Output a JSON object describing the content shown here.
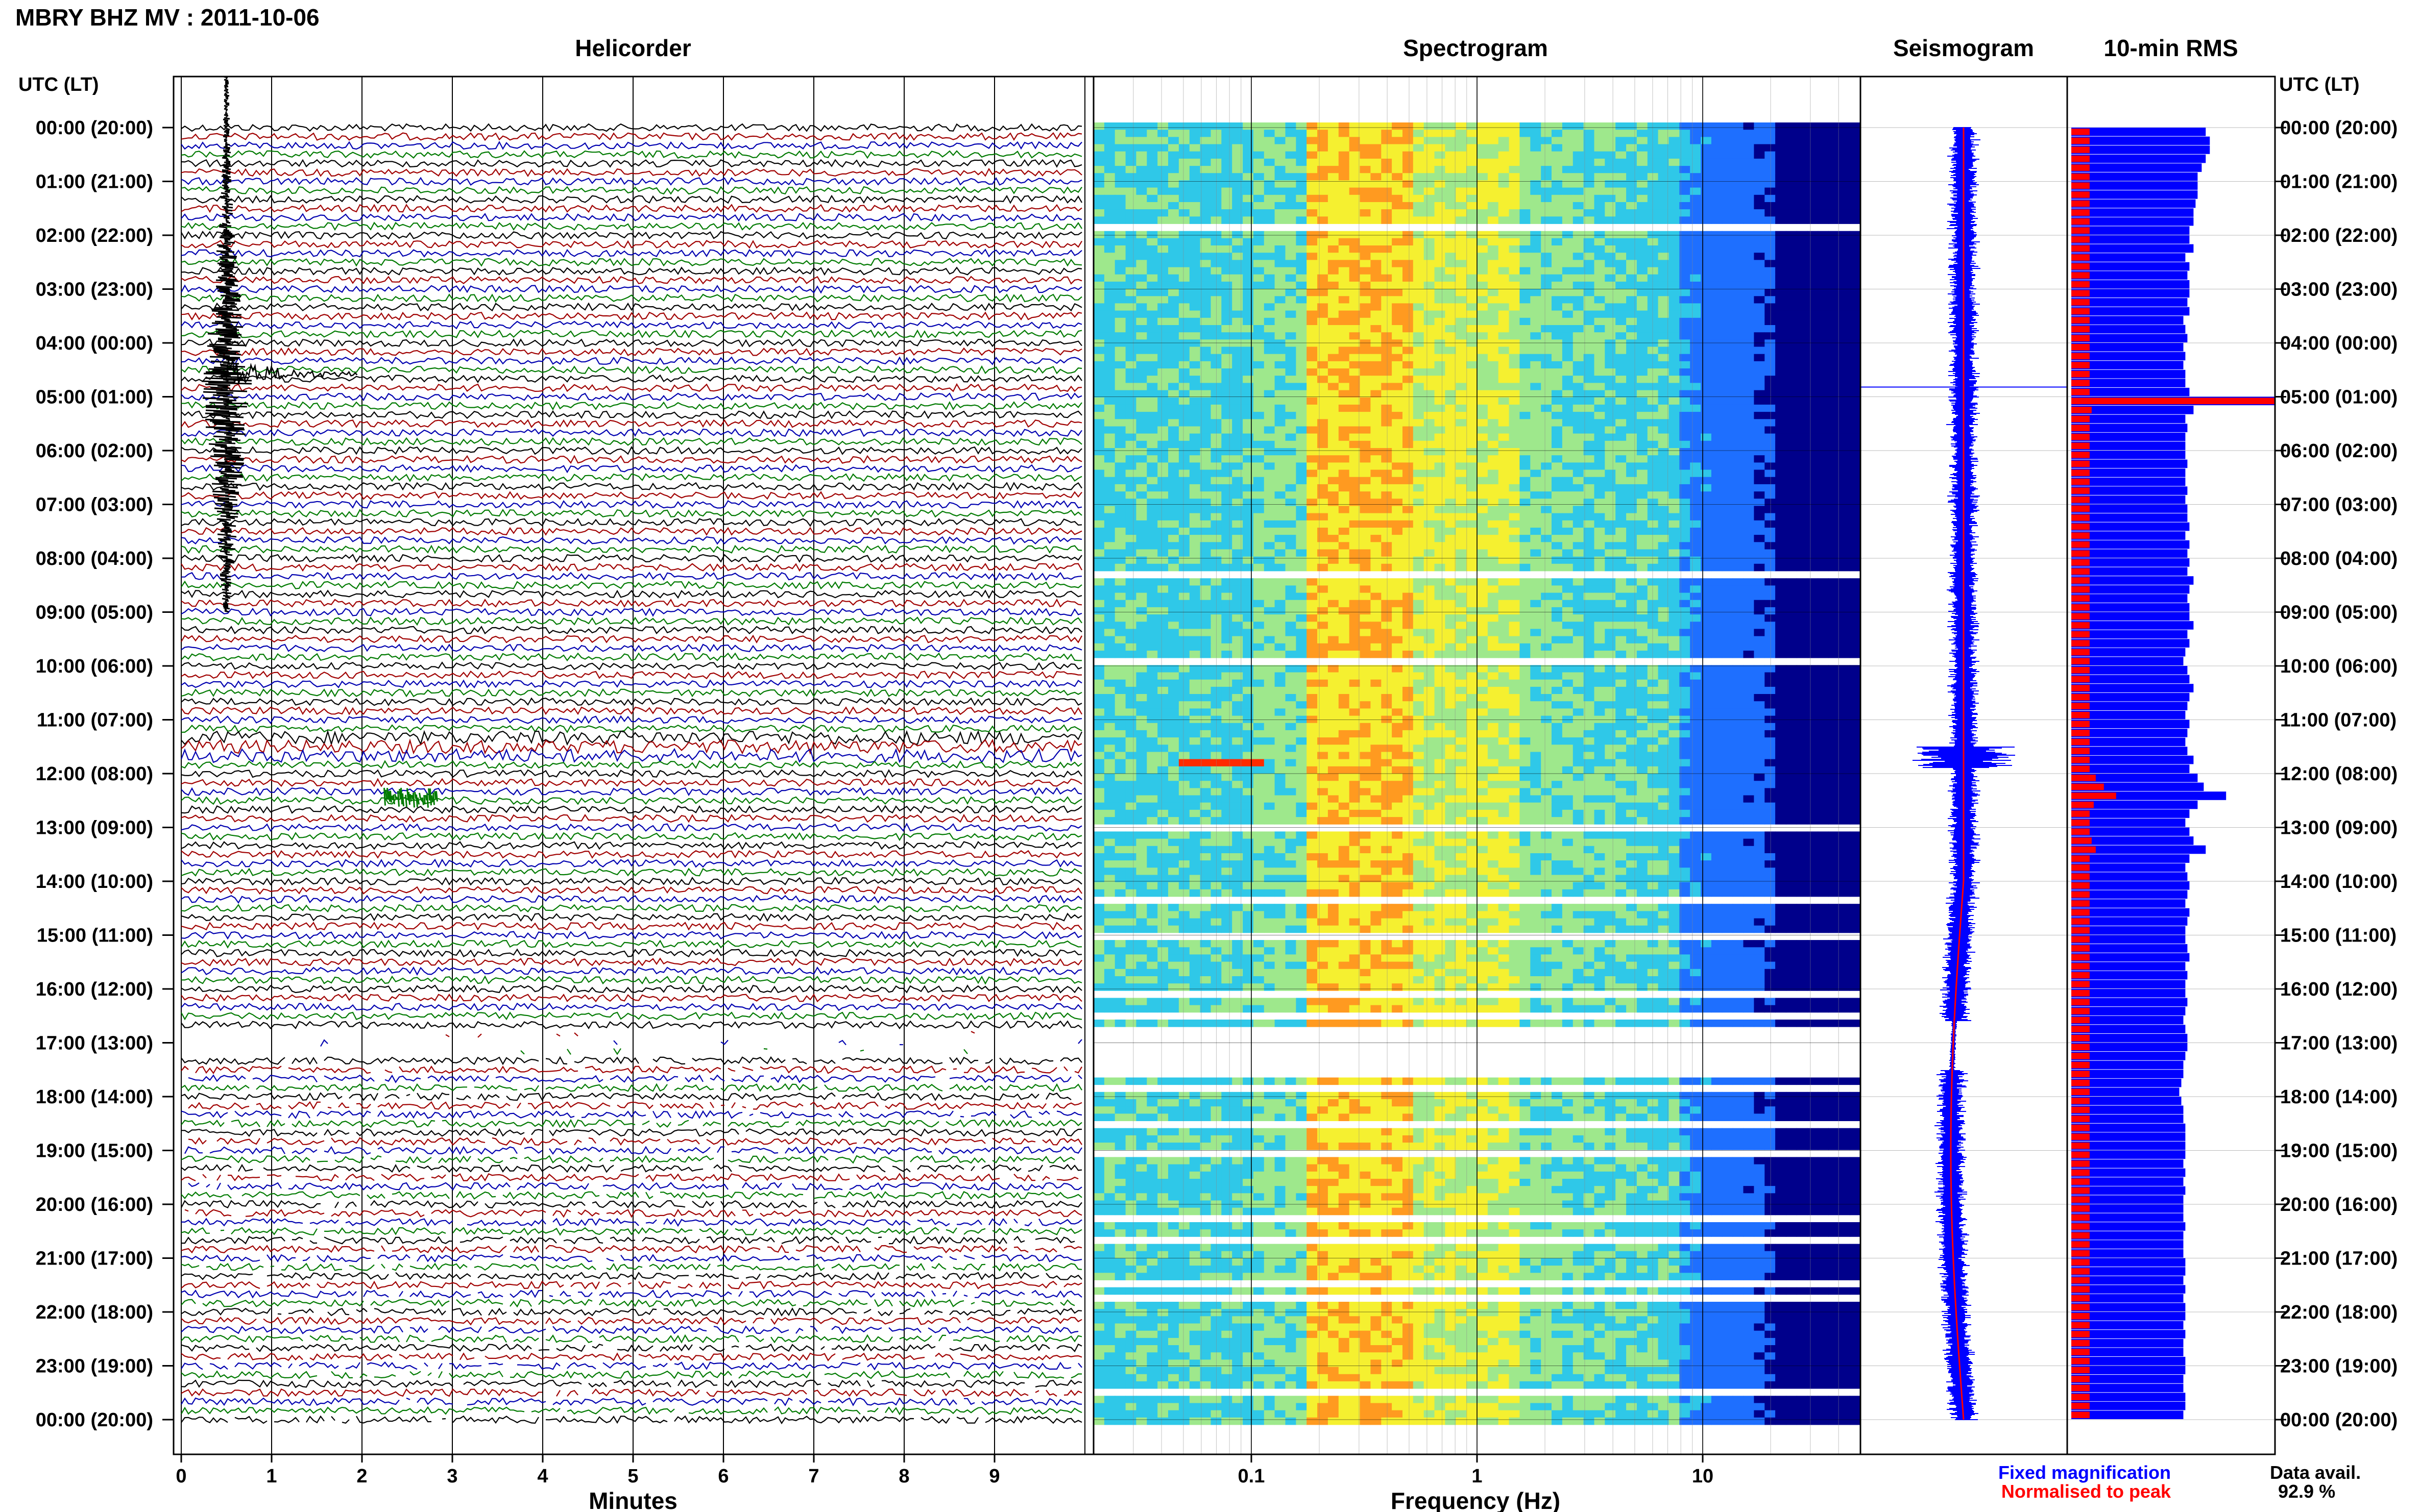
{
  "header": {
    "station_title": "MBRY BHZ MV : 2011-10-06",
    "utc_label_left": "UTC (LT)",
    "utc_label_right": "UTC (LT)"
  },
  "panels": {
    "helicorder": "Helicorder",
    "spectrogram": "Spectrogram",
    "seismogram": "Seismogram",
    "rms": "10-min RMS"
  },
  "axes": {
    "helicorder_xlabel": "Minutes",
    "spectrogram_xlabel": "Frequency (Hz)"
  },
  "legend": {
    "fixed": "Fixed magnification",
    "normalised": "Normalised to peak",
    "fixed_color": "#0000ff",
    "normalised_color": "#ff0000"
  },
  "availability": {
    "label": "Data avail.",
    "value": "92.9 %"
  },
  "colors": {
    "trace_cycle": [
      "#000000",
      "#a00000",
      "#0000b0",
      "#007a00"
    ],
    "rms_bar": "#0000ff",
    "rms_norm": "#ff0000"
  },
  "chart_data": [
    {
      "type": "line",
      "title": "Helicorder",
      "xlabel": "Minutes",
      "xticks": [
        "0",
        "1",
        "2",
        "3",
        "4",
        "5",
        "6",
        "7",
        "8",
        "9"
      ],
      "xlim": [
        0,
        10
      ],
      "ylabels": [
        "00:00 (20:00)",
        "01:00 (21:00)",
        "02:00 (22:00)",
        "03:00 (23:00)",
        "04:00 (00:00)",
        "05:00 (01:00)",
        "06:00 (02:00)",
        "07:00 (03:00)",
        "08:00 (04:00)",
        "09:00 (05:00)",
        "10:00 (06:00)",
        "11:00 (07:00)",
        "12:00 (08:00)",
        "13:00 (09:00)",
        "14:00 (10:00)",
        "15:00 (11:00)",
        "16:00 (12:00)",
        "17:00 (13:00)",
        "18:00 (14:00)",
        "19:00 (15:00)",
        "20:00 (16:00)",
        "21:00 (17:00)",
        "22:00 (18:00)",
        "23:00 (19:00)",
        "00:00 (20:00)"
      ],
      "rows_per_hour": 6,
      "events": [
        {
          "time_utc": "04:50",
          "peak_minute": 0.5
        },
        {
          "time_utc": "12:20",
          "peak_minute": 2.5
        }
      ],
      "gap_hours": [
        16.7,
        17.2
      ]
    },
    {
      "type": "heatmap",
      "title": "Spectrogram",
      "xlabel": "Frequency (Hz)",
      "xscale": "log",
      "xlim": [
        0.02,
        50
      ],
      "xticks": [
        "0.1",
        "1",
        "10"
      ],
      "colormap": [
        "#00008b",
        "#1e6fff",
        "#2fc8e8",
        "#9ee88c",
        "#f5f030",
        "#ff9a20",
        "#ff2a00"
      ],
      "gap_hours": [
        16.6,
        17.5
      ]
    },
    {
      "type": "line",
      "title": "Seismogram",
      "series": [
        {
          "name": "Fixed magnification",
          "color": "#0000ff"
        },
        {
          "name": "Normalised to peak",
          "color": "#ff0000"
        }
      ]
    },
    {
      "type": "bar",
      "title": "10-min RMS",
      "orientation": "horizontal",
      "bins_per_hour": 6,
      "series": [
        {
          "name": "Fixed magnification",
          "color": "#0000ff",
          "values": [
            0.66,
            0.68,
            0.68,
            0.66,
            0.64,
            0.62,
            0.62,
            0.62,
            0.61,
            0.6,
            0.6,
            0.58,
            0.58,
            0.6,
            0.56,
            0.58,
            0.57,
            0.58,
            0.58,
            0.57,
            0.58,
            0.55,
            0.56,
            0.57,
            0.55,
            0.56,
            0.55,
            0.56,
            0.56,
            0.58,
            1.0,
            0.6,
            0.56,
            0.57,
            0.56,
            0.56,
            0.56,
            0.57,
            0.56,
            0.56,
            0.57,
            0.56,
            0.57,
            0.57,
            0.58,
            0.56,
            0.58,
            0.57,
            0.58,
            0.57,
            0.6,
            0.58,
            0.57,
            0.58,
            0.58,
            0.6,
            0.57,
            0.58,
            0.56,
            0.55,
            0.57,
            0.58,
            0.6,
            0.58,
            0.57,
            0.56,
            0.58,
            0.57,
            0.56,
            0.57,
            0.6,
            0.58,
            0.62,
            0.65,
            0.76,
            0.62,
            0.58,
            0.56,
            0.58,
            0.6,
            0.66,
            0.58,
            0.56,
            0.57,
            0.58,
            0.57,
            0.56,
            0.58,
            0.57,
            0.56,
            0.56,
            0.57,
            0.58,
            0.56,
            0.57,
            0.56,
            0.56,
            0.57,
            0.56,
            0.55,
            0.56,
            0.57,
            0.57,
            0.56,
            0.55,
            0.55,
            0.54,
            0.53,
            0.54,
            0.55,
            0.55,
            0.56,
            0.56,
            0.56,
            0.56,
            0.55,
            0.56,
            0.55,
            0.56,
            0.55,
            0.55,
            0.55,
            0.56,
            0.55,
            0.55,
            0.55,
            0.56,
            0.56,
            0.55,
            0.56,
            0.55,
            0.56,
            0.56,
            0.55,
            0.56,
            0.55,
            0.55,
            0.56,
            0.56,
            0.55,
            0.55,
            0.56,
            0.56,
            0.55
          ]
        },
        {
          "name": "Normalised to peak",
          "color": "#ff0000",
          "values": [
            0.09,
            0.09,
            0.09,
            0.09,
            0.09,
            0.09,
            0.09,
            0.09,
            0.09,
            0.09,
            0.09,
            0.09,
            0.09,
            0.09,
            0.09,
            0.09,
            0.09,
            0.09,
            0.09,
            0.09,
            0.09,
            0.09,
            0.09,
            0.09,
            0.09,
            0.09,
            0.09,
            0.09,
            0.09,
            0.09,
            1.0,
            0.1,
            0.09,
            0.09,
            0.09,
            0.09,
            0.09,
            0.09,
            0.09,
            0.09,
            0.09,
            0.09,
            0.09,
            0.09,
            0.09,
            0.09,
            0.09,
            0.09,
            0.09,
            0.09,
            0.09,
            0.09,
            0.09,
            0.09,
            0.09,
            0.09,
            0.09,
            0.09,
            0.09,
            0.09,
            0.09,
            0.09,
            0.09,
            0.09,
            0.09,
            0.09,
            0.09,
            0.09,
            0.09,
            0.09,
            0.09,
            0.09,
            0.12,
            0.16,
            0.22,
            0.11,
            0.09,
            0.09,
            0.09,
            0.1,
            0.12,
            0.09,
            0.09,
            0.09,
            0.09,
            0.09,
            0.09,
            0.09,
            0.09,
            0.09,
            0.09,
            0.09,
            0.09,
            0.09,
            0.09,
            0.09,
            0.09,
            0.09,
            0.09,
            0.09,
            0.09,
            0.09,
            0.09,
            0.09,
            0.09,
            0.09,
            0.09,
            0.09,
            0.09,
            0.09,
            0.09,
            0.09,
            0.09,
            0.09,
            0.09,
            0.09,
            0.09,
            0.09,
            0.09,
            0.09,
            0.09,
            0.09,
            0.09,
            0.09,
            0.09,
            0.09,
            0.09,
            0.09,
            0.09,
            0.09,
            0.09,
            0.09,
            0.09,
            0.09,
            0.09,
            0.09,
            0.09,
            0.09,
            0.09,
            0.09,
            0.09,
            0.09,
            0.09,
            0.09
          ]
        }
      ]
    }
  ]
}
